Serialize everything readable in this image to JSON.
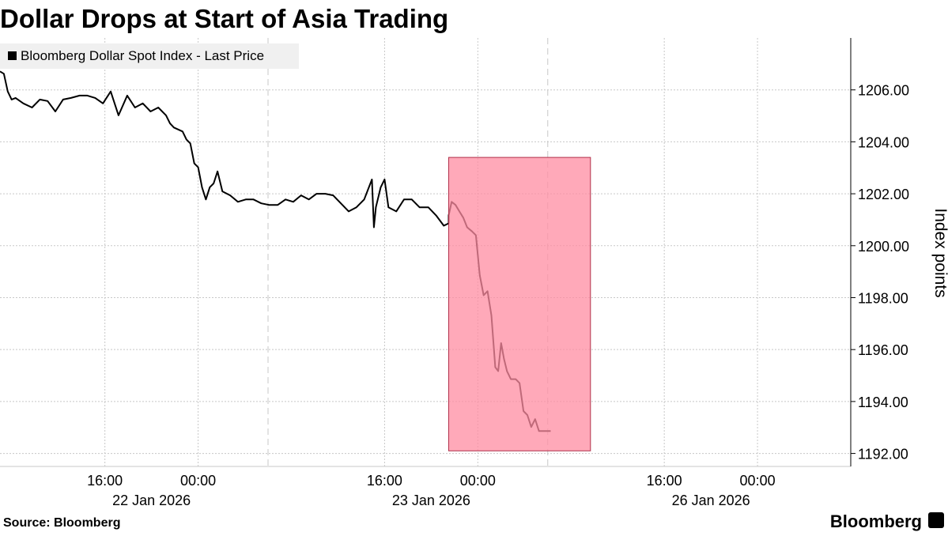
{
  "chart_data": {
    "type": "line",
    "title": "Dollar Drops at Start of Asia Trading",
    "y_label": "Index points",
    "source": "Source: Bloomberg",
    "brand": "Bloomberg",
    "legend_position": "top-left",
    "grid": true,
    "xlim": [
      "2026-01-22 07:00",
      "2026-01-27 08:00"
    ],
    "ylim": [
      1191.5,
      1208
    ],
    "yticks": [
      {
        "value": 1192,
        "label": "1192.00"
      },
      {
        "value": 1194,
        "label": "1194.00"
      },
      {
        "value": 1196,
        "label": "1196.00"
      },
      {
        "value": 1198,
        "label": "1198.00"
      },
      {
        "value": 1200,
        "label": "1200.00"
      },
      {
        "value": 1202,
        "label": "1202.00"
      },
      {
        "value": 1204,
        "label": "1204.00"
      },
      {
        "value": 1206,
        "label": "1206.00"
      }
    ],
    "xticks": [
      {
        "value": "2026-01-22 16:00",
        "label": "16:00"
      },
      {
        "value": "2026-01-23 00:00",
        "label": "00:00"
      },
      {
        "value": "2026-01-23 16:00",
        "label": "16:00"
      },
      {
        "value": "2026-01-26 00:00",
        "label": "00:00"
      },
      {
        "value": "2026-01-26 16:00",
        "label": "16:00"
      },
      {
        "value": "2026-01-27 00:00",
        "label": "00:00"
      }
    ],
    "x_minor_ticks": [
      "2026-01-23 06:00",
      "2026-01-26 06:00"
    ],
    "x_date_labels": [
      "22 Jan 2026",
      "23 Jan 2026",
      "26 Jan 2026"
    ],
    "highlight": {
      "x": [
        "2026-01-25 21:30",
        "2026-01-26 09:40"
      ],
      "y": [
        1192.1,
        1203.4
      ],
      "color": "#ff8ca1"
    },
    "x": [
      "2026-01-22 07:00",
      "2026-01-22 07:20",
      "2026-01-22 07:40",
      "2026-01-22 08:00",
      "2026-01-22 08:20",
      "2026-01-22 09:00",
      "2026-01-22 09:45",
      "2026-01-22 10:25",
      "2026-01-22 11:05",
      "2026-01-22 11:45",
      "2026-01-22 12:25",
      "2026-01-22 13:05",
      "2026-01-22 13:50",
      "2026-01-22 14:30",
      "2026-01-22 15:10",
      "2026-01-22 15:50",
      "2026-01-22 16:30",
      "2026-01-22 17:10",
      "2026-01-22 17:55",
      "2026-01-22 18:35",
      "2026-01-22 19:15",
      "2026-01-22 19:55",
      "2026-01-22 20:35",
      "2026-01-22 21:15",
      "2026-01-22 21:35",
      "2026-01-22 21:55",
      "2026-01-22 22:40",
      "2026-01-22 23:00",
      "2026-01-22 23:20",
      "2026-01-22 23:40",
      "2026-01-23 00:00",
      "2026-01-23 00:20",
      "2026-01-23 00:40",
      "2026-01-23 01:00",
      "2026-01-23 01:20",
      "2026-01-23 01:40",
      "2026-01-23 02:05",
      "2026-01-23 02:45",
      "2026-01-23 03:25",
      "2026-01-23 04:05",
      "2026-01-23 04:45",
      "2026-01-23 05:25",
      "2026-01-23 06:05",
      "2026-01-23 06:50",
      "2026-01-23 07:30",
      "2026-01-23 08:10",
      "2026-01-23 08:50",
      "2026-01-23 09:30",
      "2026-01-23 10:10",
      "2026-01-23 10:55",
      "2026-01-23 11:35",
      "2026-01-23 12:15",
      "2026-01-23 12:55",
      "2026-01-23 13:35",
      "2026-01-23 14:15",
      "2026-01-23 14:55",
      "2026-01-23 15:05",
      "2026-01-23 15:15",
      "2026-01-23 15:40",
      "2026-01-23 16:00",
      "2026-01-23 16:20",
      "2026-01-23 17:00",
      "2026-01-23 17:40",
      "2026-01-23 18:20",
      "2026-01-23 19:00",
      "2026-01-23 19:45",
      "2026-01-23 20:25",
      "2026-01-23 21:05",
      "2026-01-23 21:30",
      "2026-01-25 21:30",
      "2026-01-25 21:45",
      "2026-01-25 22:05",
      "2026-01-25 22:25",
      "2026-01-25 22:45",
      "2026-01-25 23:05",
      "2026-01-25 23:30",
      "2026-01-25 23:50",
      "2026-01-26 00:10",
      "2026-01-26 00:30",
      "2026-01-26 00:50",
      "2026-01-26 01:10",
      "2026-01-26 01:30",
      "2026-01-26 01:45",
      "2026-01-26 02:00",
      "2026-01-26 02:15",
      "2026-01-26 02:30",
      "2026-01-26 02:50",
      "2026-01-26 03:15",
      "2026-01-26 03:35",
      "2026-01-26 03:55",
      "2026-01-26 04:15",
      "2026-01-26 04:35",
      "2026-01-26 04:55",
      "2026-01-26 05:15",
      "2026-01-26 05:55",
      "2026-01-26 06:15"
    ],
    "series": [
      {
        "name": "Bloomberg Dollar Spot Index - Last Price",
        "color": "#000000",
        "values": [
          1206.71,
          1206.62,
          1205.94,
          1205.63,
          1205.69,
          1205.48,
          1205.32,
          1205.63,
          1205.57,
          1205.17,
          1205.63,
          1205.69,
          1205.78,
          1205.78,
          1205.69,
          1205.48,
          1205.94,
          1205.02,
          1205.78,
          1205.32,
          1205.48,
          1205.17,
          1205.32,
          1205.02,
          1204.71,
          1204.55,
          1204.4,
          1204.09,
          1203.94,
          1203.17,
          1203.02,
          1202.25,
          1201.78,
          1202.25,
          1202.4,
          1202.86,
          1202.09,
          1201.94,
          1201.69,
          1201.78,
          1201.78,
          1201.63,
          1201.57,
          1201.57,
          1201.78,
          1201.69,
          1201.94,
          1201.78,
          1202.0,
          1202.0,
          1201.94,
          1201.63,
          1201.32,
          1201.48,
          1201.78,
          1202.55,
          1200.71,
          1201.48,
          1202.25,
          1202.55,
          1201.48,
          1201.32,
          1201.78,
          1201.78,
          1201.48,
          1201.48,
          1201.17,
          1200.77,
          1200.86,
          1201.17,
          1201.69,
          1201.57,
          1201.32,
          1201.08,
          1200.71,
          1200.55,
          1200.4,
          1198.86,
          1198.09,
          1198.25,
          1197.32,
          1195.32,
          1195.17,
          1196.25,
          1195.63,
          1195.17,
          1194.86,
          1194.86,
          1194.71,
          1193.63,
          1193.48,
          1193.02,
          1193.32,
          1192.86,
          1192.86,
          1192.86
        ]
      }
    ]
  }
}
